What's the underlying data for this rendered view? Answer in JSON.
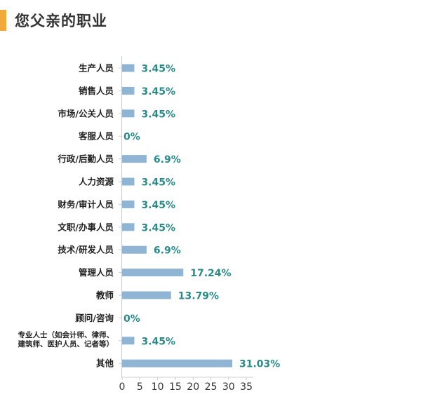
{
  "page_title": "您父亲的职业",
  "colors": {
    "accent": "#f2a93b",
    "bar": "#8fb4d4",
    "value_text": "#2a8a8a",
    "axis": "#cccccc"
  },
  "chart_data": {
    "type": "bar",
    "orientation": "horizontal",
    "title": "您父亲的职业",
    "categories": [
      "生产人员",
      "销售人员",
      "市场/公关人员",
      "客服人员",
      "行政/后勤人员",
      "人力资源",
      "财务/审计人员",
      "文职/办事人员",
      "技术/研发人员",
      "管理人员",
      "教师",
      "顾问/咨询",
      [
        "专业人士（如会计师、律师、",
        "建筑师、医护人员、记者等）"
      ],
      "其他"
    ],
    "values": [
      3.45,
      3.45,
      3.45,
      0,
      6.9,
      3.45,
      3.45,
      3.45,
      6.9,
      17.24,
      13.79,
      0,
      3.45,
      31.03
    ],
    "value_labels": [
      "3.45%",
      "3.45%",
      "3.45%",
      "0%",
      "6.9%",
      "3.45%",
      "3.45%",
      "3.45%",
      "6.9%",
      "17.24%",
      "13.79%",
      "0%",
      "3.45%",
      "31.03%"
    ],
    "xlim": [
      0,
      35
    ],
    "xticks": [
      0,
      5,
      10,
      15,
      20,
      25,
      30,
      35
    ],
    "xlabel": "",
    "ylabel": "",
    "grid": false,
    "legend": "none"
  }
}
